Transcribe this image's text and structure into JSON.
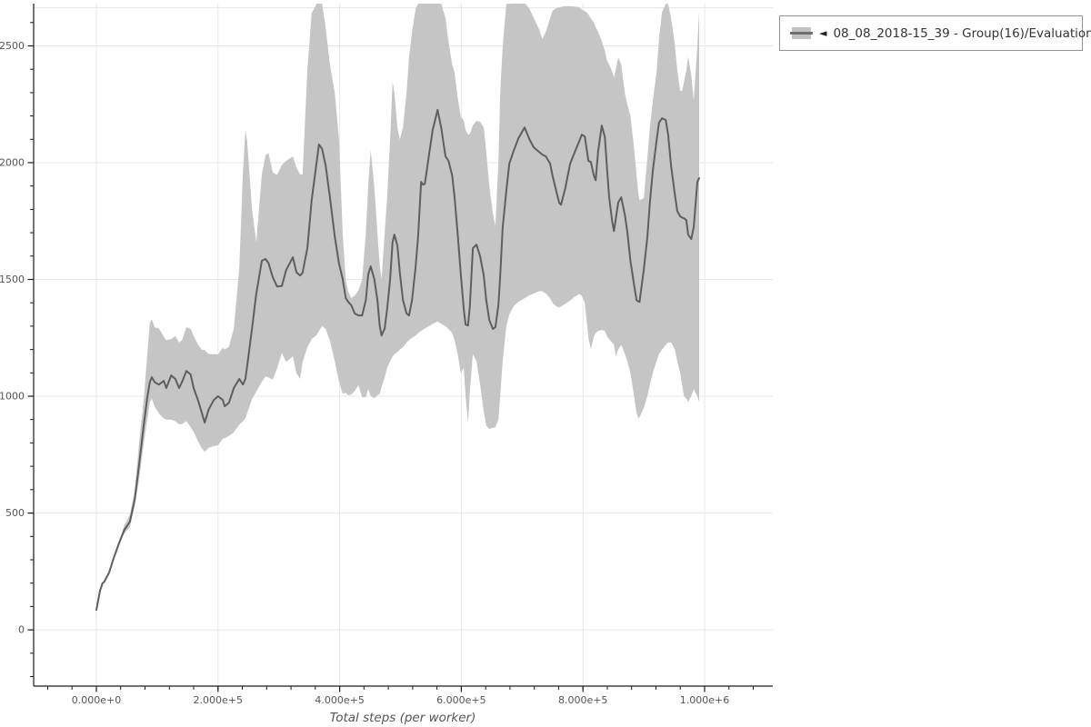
{
  "legend": {
    "marker_glyph": "◄",
    "label": "08_08_2018-15_39 - Group(16)/Evaluation Reward"
  },
  "colors": {
    "background": "#ffffff",
    "band": "#c5c5c5",
    "line": "#5e5e5e",
    "grid": "#e7e7e7",
    "axis": "#1c1c1c",
    "tick_label": "#555555",
    "axis_title": "#555555",
    "legend_border": "#959595",
    "legend_text": "#333333"
  },
  "chart_data": {
    "type": "line",
    "title": "",
    "xlabel": "Total steps (per worker)",
    "ylabel": "",
    "series_name": "08_08_2018-15_39 - Group(16)/Evaluation Reward",
    "legend_position": "outside-top-right",
    "grid": "major-both-axes",
    "shaded_band": "light gray envelope (value range) around the mean line, clipped at plot top",
    "x_axis": {
      "unit": "steps",
      "lim": [
        -103100,
        1112100
      ],
      "major_tick_values": [
        0,
        200000,
        400000,
        600000,
        800000,
        1000000
      ],
      "major_tick_labels": [
        "0.000e+0",
        "2.000e+5",
        "4.000e+5",
        "6.000e+5",
        "8.000e+5",
        "1.000e+6"
      ],
      "minor_tick_step": 40000,
      "minor_tick_range": [
        -80000,
        1080000
      ]
    },
    "y_axis": {
      "lim": [
        -241,
        2681
      ],
      "major_tick_values": [
        0,
        500,
        1000,
        1500,
        2000,
        2500
      ],
      "major_tick_labels": [
        "0",
        "500",
        "1000",
        "1500",
        "2000",
        "2500"
      ],
      "minor_tick_step": 100,
      "minor_tick_range": [
        -200,
        2600
      ]
    },
    "point_format": [
      "step_thousands",
      "mean",
      "band_low",
      "band_high"
    ],
    "points": [
      [
        0,
        85
      ],
      [
        6,
        167
      ],
      [
        10,
        199
      ],
      [
        13,
        206
      ],
      [
        21,
        245
      ],
      [
        28,
        303
      ],
      [
        36,
        362
      ],
      [
        40,
        389,
        378,
        400
      ],
      [
        46,
        428,
        413,
        448
      ],
      [
        51,
        447,
        428,
        472
      ],
      [
        55,
        462,
        440,
        492
      ],
      [
        58,
        498,
        473,
        530
      ],
      [
        63,
        556,
        528,
        595
      ],
      [
        70,
        700,
        640,
        790
      ],
      [
        78,
        880,
        800,
        990
      ],
      [
        84,
        1000,
        905,
        1190
      ],
      [
        88,
        1062,
        975,
        1315
      ],
      [
        91,
        1081,
        990,
        1330
      ],
      [
        96,
        1060,
        955,
        1295
      ],
      [
        103,
        1050,
        925,
        1290
      ],
      [
        111,
        1066,
        905,
        1255
      ],
      [
        115,
        1035,
        900,
        1240
      ],
      [
        123,
        1089,
        900,
        1245
      ],
      [
        130,
        1074,
        893,
        1258
      ],
      [
        136,
        1035,
        880,
        1230
      ],
      [
        141,
        1062,
        881,
        1240
      ],
      [
        148,
        1108,
        894,
        1296
      ],
      [
        155,
        1093,
        867,
        1288
      ],
      [
        160,
        1035,
        848,
        1258
      ],
      [
        167,
        984,
        808,
        1222
      ],
      [
        173,
        933,
        779,
        1200
      ],
      [
        178,
        887,
        762,
        1198
      ],
      [
        185,
        945,
        780,
        1180
      ],
      [
        193,
        984,
        786,
        1180
      ],
      [
        200,
        1000,
        790,
        1179
      ],
      [
        208,
        984,
        818,
        1208
      ],
      [
        211,
        957,
        820,
        1200
      ],
      [
        218,
        972,
        830,
        1212
      ],
      [
        226,
        1035,
        846,
        1290
      ],
      [
        235,
        1074,
        878,
        1550
      ],
      [
        241,
        1050,
        893,
        1960
      ],
      [
        245,
        1074,
        906,
        2140
      ],
      [
        248,
        1130,
        928,
        2090
      ],
      [
        256,
        1290,
        988,
        1800
      ],
      [
        263,
        1440,
        1020,
        1660
      ],
      [
        272,
        1580,
        1062,
        1950
      ],
      [
        278,
        1588,
        1085,
        2030
      ],
      [
        283,
        1570,
        1080,
        2042
      ],
      [
        290,
        1510,
        1072,
        1958
      ],
      [
        297,
        1470,
        1118,
        1948
      ],
      [
        305,
        1472,
        1186,
        1990
      ],
      [
        312,
        1540,
        1147,
        2008
      ],
      [
        323,
        1595,
        1171,
        2027
      ],
      [
        329,
        1530,
        1098,
        1978
      ],
      [
        335,
        1517,
        1074,
        1950
      ],
      [
        339,
        1529,
        1147,
        1949
      ],
      [
        347,
        1634,
        1210,
        2400
      ],
      [
        354,
        1840,
        1245,
        2640
      ],
      [
        362,
        2000,
        1262,
        2680
      ],
      [
        366,
        2078,
        1280,
        2686
      ],
      [
        371,
        2060,
        1300,
        2683
      ],
      [
        377,
        1988,
        1288,
        2579
      ],
      [
        384,
        1852,
        1238,
        2420
      ],
      [
        392,
        1684,
        1150,
        2300
      ],
      [
        399,
        1568,
        1062,
        2100
      ],
      [
        405,
        1502,
        1011,
        1700
      ],
      [
        410,
        1420,
        1015,
        1500
      ],
      [
        414,
        1404,
        1004,
        1450
      ],
      [
        419,
        1390,
        1008,
        1420
      ],
      [
        425,
        1354,
        1023,
        1432
      ],
      [
        431,
        1346,
        1048,
        1452
      ],
      [
        437,
        1346,
        996,
        1500
      ],
      [
        443,
        1412,
        996,
        1700
      ],
      [
        447,
        1521,
        1031,
        1900
      ],
      [
        451,
        1556,
        1000,
        2054
      ],
      [
        457,
        1502,
        992,
        1898
      ],
      [
        462,
        1412,
        1004,
        1700
      ],
      [
        466,
        1300,
        1010,
        1560
      ],
      [
        469,
        1260,
        1040,
        1500
      ],
      [
        474,
        1290,
        1080,
        1700
      ],
      [
        478,
        1373,
        1121,
        1850
      ],
      [
        483,
        1500,
        1150,
        2100
      ],
      [
        487,
        1660,
        1170,
        2346
      ],
      [
        490,
        1692,
        1180,
        2300
      ],
      [
        495,
        1645,
        1190,
        2150
      ],
      [
        499,
        1529,
        1200,
        2100
      ],
      [
        504,
        1412,
        1210,
        2150
      ],
      [
        510,
        1354,
        1230,
        2300
      ],
      [
        514,
        1346,
        1240,
        2450
      ],
      [
        519,
        1412,
        1250,
        2560
      ],
      [
        525,
        1556,
        1260,
        2660
      ],
      [
        529,
        1684,
        1270,
        2680
      ],
      [
        534,
        1918,
        1280,
        2682
      ],
      [
        537,
        1906,
        1285,
        2683
      ],
      [
        540,
        1910,
        1290,
        2684
      ],
      [
        547,
        2034,
        1300,
        2688
      ],
      [
        553,
        2140,
        1310,
        2690
      ],
      [
        561,
        2226,
        1320,
        2690
      ],
      [
        567,
        2150,
        1310,
        2680
      ],
      [
        574,
        2027,
        1300,
        2620
      ],
      [
        579,
        2008,
        1288,
        2520
      ],
      [
        585,
        1945,
        1270,
        2420
      ],
      [
        589,
        1852,
        1240,
        2385
      ],
      [
        594,
        1696,
        1180,
        2280
      ],
      [
        599,
        1529,
        1100,
        2200
      ],
      [
        604,
        1373,
        1121,
        2180
      ],
      [
        607,
        1307,
        1000,
        2140
      ],
      [
        611,
        1303,
        887,
        2120
      ],
      [
        614,
        1385,
        1023,
        2124
      ],
      [
        619,
        1634,
        1179,
        2160
      ],
      [
        625,
        1649,
        1150,
        2179
      ],
      [
        631,
        1599,
        1050,
        2175
      ],
      [
        637,
        1517,
        933,
        2150
      ],
      [
        641,
        1412,
        875,
        2050
      ],
      [
        646,
        1326,
        860,
        1900
      ],
      [
        652,
        1288,
        865,
        1780
      ],
      [
        656,
        1296,
        868,
        1730
      ],
      [
        661,
        1390,
        900,
        2000
      ],
      [
        664,
        1517,
        1000,
        2300
      ],
      [
        668,
        1723,
        1150,
        2500
      ],
      [
        674,
        1879,
        1300,
        2680
      ],
      [
        679,
        1996,
        1350,
        2680
      ],
      [
        686,
        2050,
        1385,
        2682
      ],
      [
        694,
        2105,
        1405,
        2683
      ],
      [
        704,
        2151,
        1420,
        2684
      ],
      [
        712,
        2101,
        1432,
        2660
      ],
      [
        719,
        2066,
        1440,
        2620
      ],
      [
        728,
        2046,
        1450,
        2571
      ],
      [
        733,
        2035,
        1450,
        2530
      ],
      [
        739,
        2027,
        1440,
        2560
      ],
      [
        746,
        1996,
        1420,
        2620
      ],
      [
        750,
        1945,
        1400,
        2650
      ],
      [
        756,
        1879,
        1385,
        2662
      ],
      [
        761,
        1828,
        1380,
        2665
      ],
      [
        764,
        1820,
        1385,
        2667
      ],
      [
        771,
        1891,
        1395,
        2670
      ],
      [
        779,
        1996,
        1410,
        2670
      ],
      [
        786,
        2042,
        1425,
        2668
      ],
      [
        794,
        2093,
        1438,
        2666
      ],
      [
        798,
        2120,
        1430,
        2655
      ],
      [
        803,
        2112,
        1400,
        2650
      ],
      [
        809,
        2008,
        1250,
        2635
      ],
      [
        813,
        2003,
        1200,
        2618
      ],
      [
        818,
        1945,
        1256,
        2600
      ],
      [
        821,
        1925,
        1270,
        2580
      ],
      [
        825,
        2050,
        1280,
        2560
      ],
      [
        831,
        2159,
        1284,
        2520
      ],
      [
        836,
        2110,
        1280,
        2480
      ],
      [
        839,
        1996,
        1260,
        2440
      ],
      [
        843,
        1852,
        1245,
        2420
      ],
      [
        848,
        1750,
        1230,
        2390
      ],
      [
        851,
        1707,
        1220,
        2365
      ],
      [
        854,
        1760,
        1171,
        2400
      ],
      [
        858,
        1830,
        1200,
        2451
      ],
      [
        863,
        1852,
        1220,
        2420
      ],
      [
        869,
        1774,
        1180,
        2295
      ],
      [
        873,
        1704,
        1150,
        2249
      ],
      [
        878,
        1580,
        1100,
        2200
      ],
      [
        884,
        1478,
        1000,
        2062
      ],
      [
        888,
        1412,
        930,
        1950
      ],
      [
        891,
        1406,
        906,
        1870
      ],
      [
        893,
        1404,
        910,
        1840
      ],
      [
        900,
        1541,
        950,
        1848
      ],
      [
        906,
        1684,
        1000,
        2023
      ],
      [
        910,
        1828,
        1050,
        2151
      ],
      [
        915,
        1968,
        1100,
        2268
      ],
      [
        921,
        2093,
        1150,
        2385
      ],
      [
        925,
        2171,
        1180,
        2529
      ],
      [
        930,
        2190,
        1200,
        2645
      ],
      [
        936,
        2183,
        1220,
        2680
      ],
      [
        940,
        2120,
        1230,
        2680
      ],
      [
        945,
        1984,
        1230,
        2618
      ],
      [
        951,
        1867,
        1200,
        2510
      ],
      [
        955,
        1793,
        1150,
        2397
      ],
      [
        960,
        1770,
        1100,
        2307
      ],
      [
        963,
        1765,
        1050,
        2307
      ],
      [
        966,
        1762,
        1000,
        2346
      ],
      [
        970,
        1754,
        990,
        2397
      ],
      [
        973,
        1692,
        976,
        2455
      ],
      [
        978,
        1673,
        1000,
        2377
      ],
      [
        982,
        1723,
        1030,
        2268
      ],
      [
        988,
        1918,
        1000,
        2500
      ],
      [
        991,
        1934,
        976,
        2650
      ]
    ]
  }
}
